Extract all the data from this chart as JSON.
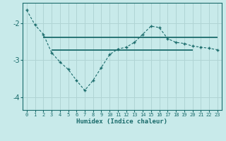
{
  "xlabel": "Humidex (Indice chaleur)",
  "bg_color": "#c8eaea",
  "grid_color": "#b0d4d4",
  "line_color": "#1a6b6b",
  "x": [
    0,
    1,
    2,
    3,
    4,
    5,
    6,
    7,
    8,
    9,
    10,
    11,
    12,
    13,
    14,
    15,
    16,
    17,
    18,
    19,
    20,
    21,
    22,
    23
  ],
  "y_curve": [
    -1.65,
    -2.05,
    -2.3,
    -2.8,
    -3.05,
    -3.25,
    -3.55,
    -3.82,
    -3.55,
    -3.2,
    -2.85,
    -2.7,
    -2.65,
    -2.52,
    -2.3,
    -2.08,
    -2.12,
    -2.42,
    -2.52,
    -2.55,
    -2.62,
    -2.65,
    -2.68,
    -2.72
  ],
  "hline1_y": -2.38,
  "hline1_x_start": 2,
  "hline1_x_end": 23,
  "hline2_y": -2.72,
  "hline2_x_start": 3,
  "hline2_x_end": 20,
  "ylim": [
    -4.35,
    -1.45
  ],
  "yticks": [
    -4,
    -3,
    -2
  ],
  "xticks": [
    0,
    1,
    2,
    3,
    4,
    5,
    6,
    7,
    8,
    9,
    10,
    11,
    12,
    13,
    14,
    15,
    16,
    17,
    18,
    19,
    20,
    21,
    22,
    23
  ]
}
